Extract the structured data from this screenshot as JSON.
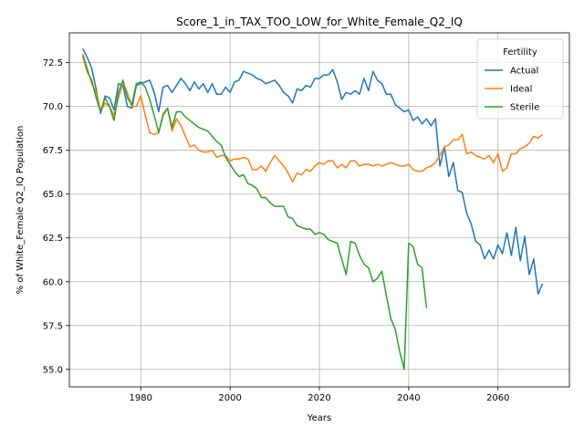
{
  "chart_data": {
    "type": "line",
    "title": "Score_1_in_TAX_TOO_LOW_for_White_Female_Q2_IQ",
    "xlabel": "Years",
    "ylabel": "% of White_Female Q2_IQ Population",
    "xlim": [
      1964,
      2076
    ],
    "ylim": [
      54.0,
      74.2
    ],
    "xticks": [
      1980,
      2000,
      2020,
      2040,
      2060
    ],
    "xtick_labels": [
      "1980",
      "2000",
      "2020",
      "2040",
      "2060"
    ],
    "yticks": [
      55.0,
      57.5,
      60.0,
      62.5,
      65.0,
      67.5,
      70.0,
      72.5
    ],
    "ytick_labels": [
      "55.0",
      "57.5",
      "60.0",
      "62.5",
      "65.0",
      "67.5",
      "70.0",
      "72.5"
    ],
    "grid": true,
    "legend": {
      "title": "Fertility",
      "position": "top-right"
    },
    "series": [
      {
        "name": "Actual",
        "color": "#1f77b4",
        "x_start": 1967,
        "values": [
          73.3,
          72.8,
          72.2,
          71.0,
          69.6,
          70.6,
          70.5,
          69.8,
          71.3,
          71.2,
          70.0,
          69.9,
          71.2,
          71.3,
          71.4,
          71.5,
          70.8,
          69.7,
          71.1,
          71.2,
          70.8,
          71.2,
          71.6,
          71.3,
          70.9,
          71.4,
          71.0,
          71.3,
          70.8,
          71.3,
          70.7,
          70.7,
          71.1,
          70.8,
          71.4,
          71.5,
          72.0,
          71.9,
          71.8,
          71.6,
          71.5,
          71.3,
          71.4,
          71.5,
          71.2,
          70.8,
          70.6,
          70.2,
          71.0,
          70.9,
          71.2,
          71.1,
          71.6,
          71.6,
          71.8,
          71.8,
          72.1,
          71.4,
          70.4,
          70.8,
          70.7,
          70.9,
          70.7,
          71.6,
          70.9,
          72.0,
          71.5,
          71.3,
          70.7,
          70.7,
          70.1,
          69.9,
          69.7,
          69.8,
          69.2,
          69.4,
          69.0,
          69.3,
          68.9,
          69.3,
          66.6,
          67.7,
          66.0,
          66.8,
          65.2,
          65.1,
          63.9,
          63.3,
          62.3,
          62.1,
          61.3,
          61.8,
          61.3,
          62.1,
          61.6,
          62.8,
          61.5,
          63.1,
          61.2,
          62.6,
          60.4,
          61.3,
          59.3,
          59.9
        ]
      },
      {
        "name": "Ideal",
        "color": "#ff7f0e",
        "x_start": 1967,
        "values": [
          73.0,
          72.2,
          71.3,
          70.8,
          69.7,
          70.2,
          70.0,
          69.5,
          70.5,
          71.3,
          70.8,
          70.0,
          70.0,
          70.6,
          69.5,
          68.5,
          68.4,
          68.5,
          69.6,
          69.9,
          68.6,
          69.3,
          68.9,
          68.3,
          67.7,
          67.8,
          67.5,
          67.4,
          67.4,
          67.5,
          67.1,
          67.2,
          67.2,
          66.9,
          67.0,
          67.0,
          67.1,
          67.0,
          66.4,
          66.4,
          66.6,
          66.3,
          66.8,
          67.2,
          66.9,
          66.6,
          66.2,
          65.7,
          66.2,
          66.1,
          66.4,
          66.3,
          66.6,
          66.8,
          66.7,
          66.9,
          66.9,
          66.5,
          66.7,
          66.5,
          66.9,
          66.9,
          66.6,
          66.7,
          66.7,
          66.6,
          66.7,
          66.6,
          66.7,
          66.8,
          66.7,
          66.6,
          66.6,
          66.7,
          66.4,
          66.3,
          66.3,
          66.5,
          66.6,
          66.8,
          67.2,
          67.7,
          67.8,
          68.1,
          68.1,
          68.4,
          67.3,
          67.4,
          67.2,
          67.1,
          67.0,
          67.2,
          66.8,
          67.3,
          66.3,
          66.5,
          67.3,
          67.3,
          67.6,
          67.7,
          67.9,
          68.3,
          68.2,
          68.4
        ]
      },
      {
        "name": "Sterile",
        "color": "#2ca02c",
        "x_start": 1967,
        "values": [
          72.9,
          72.0,
          71.5,
          70.5,
          69.7,
          70.5,
          70.0,
          69.2,
          70.8,
          71.5,
          70.5,
          70.1,
          71.3,
          71.4,
          71.1,
          70.4,
          69.5,
          68.5,
          69.5,
          69.9,
          68.8,
          69.7,
          69.7,
          69.4,
          69.2,
          69.0,
          68.8,
          68.7,
          68.6,
          68.3,
          68.0,
          67.8,
          67.1,
          66.7,
          66.3,
          66.0,
          66.1,
          65.6,
          65.5,
          65.3,
          64.8,
          64.8,
          64.5,
          64.3,
          64.3,
          64.3,
          63.7,
          63.6,
          63.2,
          63.1,
          63.0,
          63.0,
          62.7,
          62.8,
          62.7,
          62.4,
          62.3,
          62.2,
          61.3,
          60.4,
          62.3,
          62.2,
          61.5,
          61.0,
          60.8,
          60.0,
          60.2,
          60.6,
          59.2,
          57.9,
          57.3,
          56.0,
          55.0,
          62.2,
          62.0,
          61.0,
          60.8,
          58.5
        ]
      }
    ]
  }
}
